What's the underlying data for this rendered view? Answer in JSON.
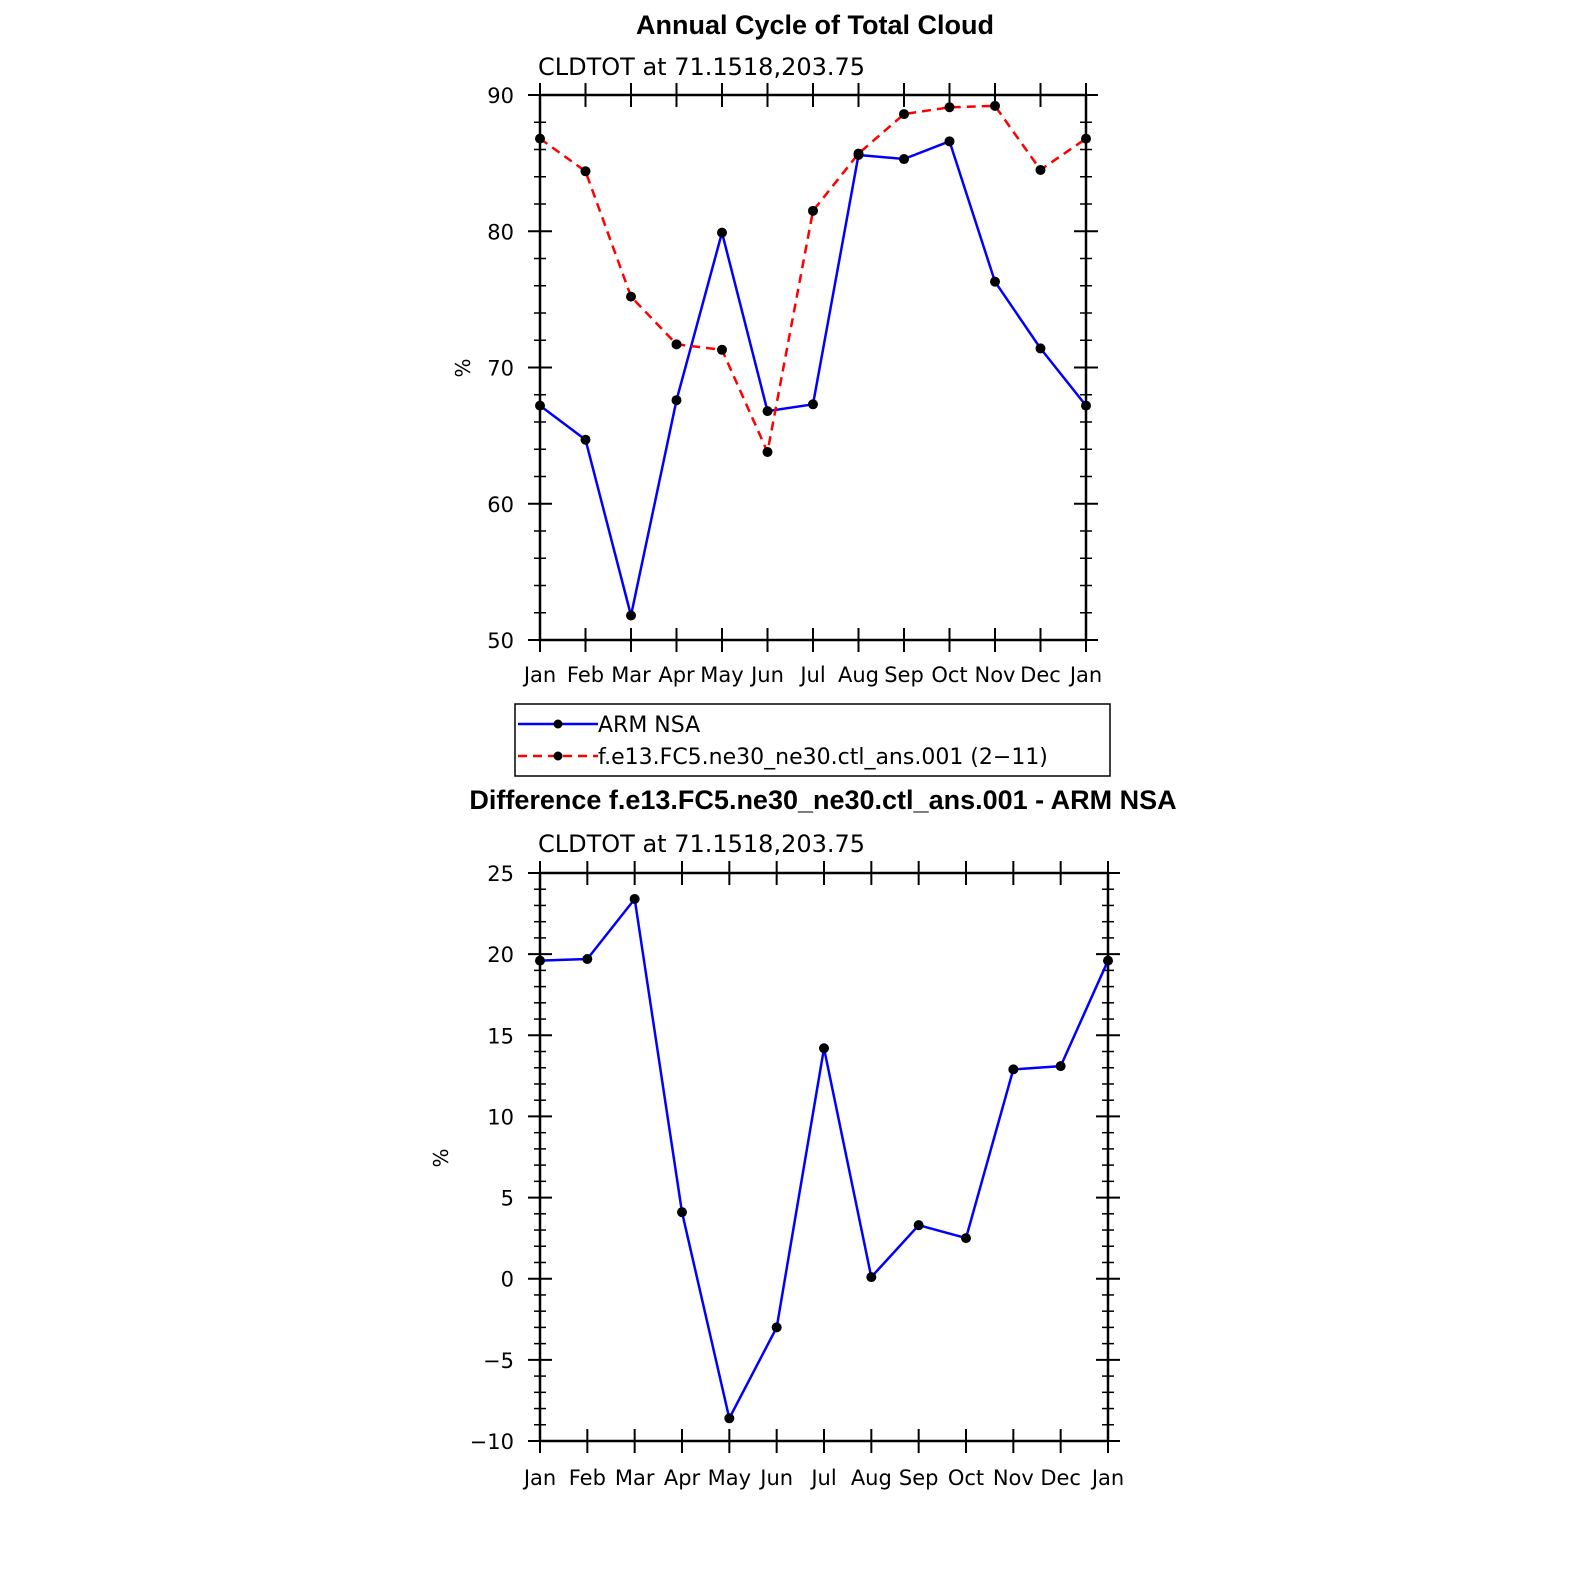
{
  "chart_data": [
    {
      "type": "line",
      "title": "Annual Cycle of Total Cloud",
      "subtitle": "CLDTOT at 71.1518,203.75",
      "ylabel": "%",
      "xlabel": "",
      "categories": [
        "Jan",
        "Feb",
        "Mar",
        "Apr",
        "May",
        "Jun",
        "Jul",
        "Aug",
        "Sep",
        "Oct",
        "Nov",
        "Dec",
        "Jan"
      ],
      "ylim": [
        50,
        90
      ],
      "yticks": [
        50,
        60,
        70,
        80,
        90
      ],
      "series": [
        {
          "name": "ARM NSA",
          "color": "#0000ff",
          "dash": "solid",
          "values": [
            67.2,
            64.7,
            51.8,
            67.6,
            79.9,
            66.8,
            67.3,
            85.6,
            85.3,
            86.6,
            76.3,
            71.4,
            67.2
          ]
        },
        {
          "name": "f.e13.FC5.ne30_ne30.ctl_ans.001 (2−11)",
          "color": "#ff0000",
          "dash": "dashed",
          "values": [
            86.8,
            84.4,
            75.2,
            71.7,
            71.3,
            63.8,
            81.5,
            85.7,
            88.6,
            89.1,
            89.2,
            84.5,
            86.8
          ]
        }
      ],
      "legend": "below"
    },
    {
      "type": "line",
      "title": "Difference f.e13.FC5.ne30_ne30.ctl_ans.001 - ARM NSA",
      "subtitle": "CLDTOT at 71.1518,203.75",
      "ylabel": "%",
      "xlabel": "",
      "categories": [
        "Jan",
        "Feb",
        "Mar",
        "Apr",
        "May",
        "Jun",
        "Jul",
        "Aug",
        "Sep",
        "Oct",
        "Nov",
        "Dec",
        "Jan"
      ],
      "ylim": [
        -10,
        25
      ],
      "yticks": [
        -10,
        -5,
        0,
        5,
        10,
        15,
        20,
        25
      ],
      "ytick_labels": [
        "−10",
        "−5",
        "0",
        "5",
        "10",
        "15",
        "20",
        "25"
      ],
      "series": [
        {
          "color": "#0000ff",
          "dash": "solid",
          "values": [
            19.6,
            19.7,
            23.4,
            4.1,
            -8.6,
            -3.0,
            14.2,
            0.1,
            3.3,
            2.5,
            12.9,
            13.1,
            19.6
          ]
        }
      ]
    }
  ]
}
